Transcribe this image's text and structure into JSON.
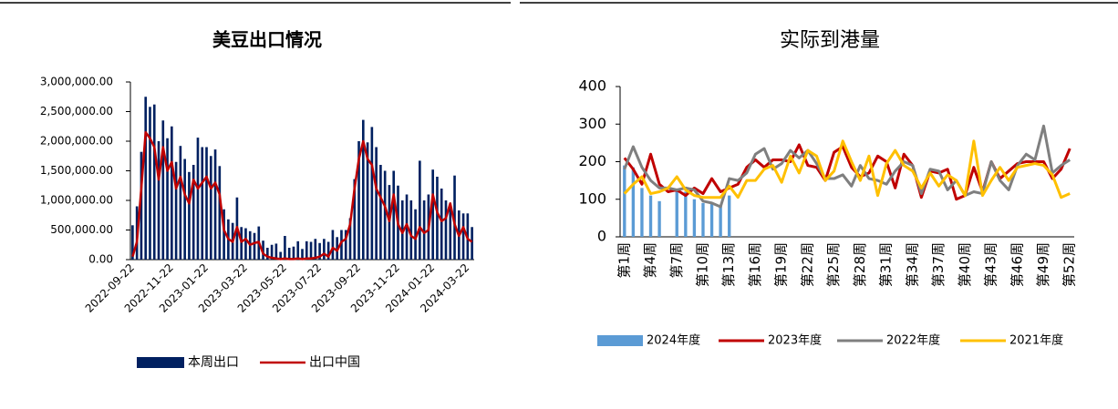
{
  "chart_data": [
    {
      "type": "bar",
      "title": "美豆出口情况",
      "categories": [
        "2022-09-22",
        null,
        null,
        null,
        null,
        null,
        null,
        null,
        null,
        "2022-11-22",
        null,
        null,
        null,
        null,
        null,
        null,
        null,
        "2023-01-22",
        null,
        null,
        null,
        null,
        null,
        null,
        null,
        null,
        "2023-03-22",
        null,
        null,
        null,
        null,
        null,
        null,
        null,
        null,
        "2023-05-22",
        null,
        null,
        null,
        null,
        null,
        null,
        null,
        "2023-07-22",
        null,
        null,
        null,
        null,
        null,
        null,
        null,
        null,
        "2023-09-22",
        null,
        null,
        null,
        null,
        null,
        null,
        null,
        null,
        "2023-11-22",
        null,
        null,
        null,
        null,
        null,
        null,
        null,
        "2024-01-22",
        null,
        null,
        null,
        null,
        null,
        null,
        null,
        "2024-03-22",
        null
      ],
      "series": [
        {
          "name": "本周出口",
          "type": "bar",
          "color": "#002060",
          "values": [
            580000,
            900000,
            1820000,
            2750000,
            2580000,
            2620000,
            2000000,
            2350000,
            2050000,
            2250000,
            1650000,
            1920000,
            1700000,
            1480000,
            1600000,
            2060000,
            1900000,
            1900000,
            1750000,
            1860000,
            1580000,
            850000,
            680000,
            620000,
            1050000,
            550000,
            530000,
            480000,
            450000,
            560000,
            320000,
            200000,
            250000,
            270000,
            130000,
            400000,
            200000,
            220000,
            310000,
            180000,
            310000,
            300000,
            350000,
            280000,
            350000,
            300000,
            500000,
            380000,
            500000,
            500000,
            700000,
            1360000,
            2000000,
            2360000,
            1980000,
            2240000,
            1900000,
            1600000,
            1500000,
            1260000,
            1500000,
            1250000,
            1000000,
            1100000,
            1000000,
            850000,
            1670000,
            1000000,
            1100000,
            1520000,
            1400000,
            1200000,
            1000000,
            900000,
            1420000,
            830000,
            780000,
            780000,
            550000
          ]
        },
        {
          "name": "出口中国",
          "type": "line",
          "color": "#c00000",
          "values": [
            50000,
            300000,
            1200000,
            2150000,
            2050000,
            1900000,
            1350000,
            1900000,
            1500000,
            1650000,
            1200000,
            1400000,
            1100000,
            950000,
            1350000,
            1200000,
            1300000,
            1400000,
            1200000,
            1300000,
            1100000,
            500000,
            350000,
            300000,
            550000,
            300000,
            350000,
            250000,
            280000,
            300000,
            100000,
            50000,
            30000,
            20000,
            10000,
            20000,
            10000,
            10000,
            20000,
            10000,
            20000,
            20000,
            30000,
            50000,
            100000,
            50000,
            200000,
            150000,
            300000,
            350000,
            600000,
            1200000,
            1700000,
            2000000,
            1700000,
            1600000,
            1200000,
            1050000,
            900000,
            650000,
            1100000,
            600000,
            450000,
            600000,
            400000,
            350000,
            550000,
            450000,
            500000,
            1100000,
            800000,
            650000,
            700000,
            950000,
            600000,
            400000,
            550000,
            350000,
            300000
          ]
        }
      ],
      "ylim": [
        0,
        3000000
      ],
      "yticks": [
        {
          "value": 0,
          "label": "0.00"
        },
        {
          "value": 500000,
          "label": "500,000.00"
        },
        {
          "value": 1000000,
          "label": "1,000,000.00"
        },
        {
          "value": 1500000,
          "label": "1,500,000.00"
        },
        {
          "value": 2000000,
          "label": "2,000,000.00"
        },
        {
          "value": 2500000,
          "label": "2,500,000.00"
        },
        {
          "value": 3000000,
          "label": "3,000,000.00"
        }
      ]
    },
    {
      "type": "bar",
      "title": "实际到港量",
      "categories": [
        "第1周",
        null,
        null,
        "第4周",
        null,
        null,
        "第7周",
        null,
        null,
        "第10周",
        null,
        null,
        "第13周",
        null,
        null,
        "第16周",
        null,
        null,
        "第19周",
        null,
        null,
        "第22周",
        null,
        null,
        "第25周",
        null,
        null,
        "第28周",
        null,
        null,
        "第31周",
        null,
        null,
        "第34周",
        null,
        null,
        "第37周",
        null,
        null,
        "第40周",
        null,
        null,
        "第43周",
        null,
        null,
        "第46周",
        null,
        null,
        "第49周",
        null,
        null,
        "第52周"
      ],
      "series": [
        {
          "name": "2024年度",
          "type": "bar",
          "color": "#5b9bd5",
          "values": [
            190,
            185,
            130,
            110,
            95,
            null,
            120,
            120,
            100,
            90,
            90,
            85,
            110,
            null,
            null,
            null,
            null,
            null,
            null,
            null,
            null,
            null,
            null,
            null,
            null,
            null,
            null,
            null,
            null,
            null,
            null,
            null,
            null,
            null,
            null,
            null,
            null,
            null,
            null,
            null,
            null,
            null,
            null,
            null,
            null,
            null,
            null,
            null,
            null,
            null,
            null,
            null
          ]
        },
        {
          "name": "2023年度",
          "type": "line",
          "color": "#c00000",
          "values": [
            210,
            180,
            140,
            220,
            140,
            120,
            125,
            110,
            130,
            115,
            155,
            120,
            130,
            140,
            185,
            205,
            185,
            205,
            205,
            200,
            245,
            190,
            185,
            150,
            225,
            240,
            185,
            160,
            170,
            215,
            200,
            130,
            220,
            190,
            105,
            175,
            170,
            180,
            100,
            110,
            185,
            120,
            200,
            155,
            175,
            195,
            200,
            200,
            200,
            155,
            180,
            235
          ]
        },
        {
          "name": "2022年度",
          "type": "line",
          "color": "#7f7f7f",
          "values": [
            180,
            240,
            185,
            150,
            130,
            130,
            125,
            130,
            125,
            95,
            90,
            80,
            155,
            150,
            170,
            220,
            235,
            180,
            195,
            230,
            210,
            230,
            195,
            155,
            155,
            165,
            135,
            190,
            155,
            150,
            140,
            175,
            200,
            190,
            115,
            180,
            175,
            125,
            150,
            110,
            120,
            115,
            200,
            150,
            125,
            190,
            220,
            205,
            295,
            170,
            190,
            205
          ]
        },
        {
          "name": "2021年度",
          "type": "line",
          "color": "#ffc000",
          "values": [
            115,
            140,
            160,
            115,
            120,
            130,
            160,
            125,
            110,
            105,
            105,
            105,
            135,
            105,
            150,
            150,
            180,
            190,
            145,
            215,
            170,
            230,
            215,
            150,
            175,
            255,
            200,
            150,
            215,
            110,
            195,
            230,
            190,
            175,
            130,
            170,
            135,
            165,
            150,
            110,
            255,
            110,
            150,
            185,
            150,
            185,
            190,
            195,
            190,
            165,
            105,
            115
          ]
        }
      ],
      "ylim": [
        0,
        400
      ],
      "yticks": [
        0,
        100,
        200,
        300,
        400
      ]
    }
  ]
}
